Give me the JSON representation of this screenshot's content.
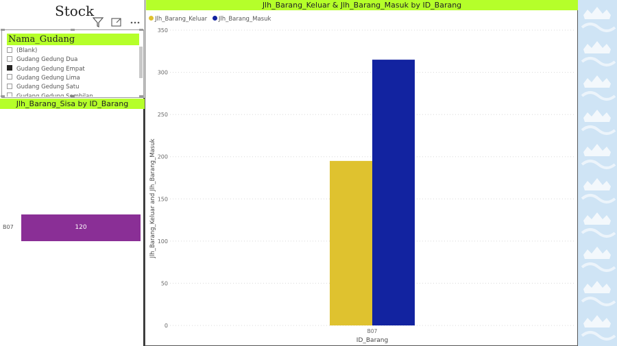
{
  "page": {
    "title": "Stock"
  },
  "header_icons": [
    "filter-icon",
    "focus-mode-icon",
    "more-options-icon"
  ],
  "slicer": {
    "title": "Nama_Gudang",
    "items": [
      {
        "label": "(Blank)",
        "checked": false
      },
      {
        "label": "Gudang Gedung Dua",
        "checked": false
      },
      {
        "label": "Gudang Gedung Empat",
        "checked": true
      },
      {
        "label": "Gudang Gedung Lima",
        "checked": false
      },
      {
        "label": "Gudang Gedung Satu",
        "checked": false
      },
      {
        "label": "Gudang Gedung Sembilan",
        "checked": false
      }
    ]
  },
  "sisa_chart": {
    "title": "Jlh_Barang_Sisa by ID_Barang",
    "categories": [
      "B07"
    ],
    "value_label": "120"
  },
  "main_chart": {
    "title": "Jlh_Barang_Keluar & Jlh_Barang_Masuk by ID_Barang",
    "legend": [
      "Jlh_Barang_Keluar",
      "Jlh_Barang_Masuk"
    ]
  },
  "chart_data": [
    {
      "type": "bar",
      "title": "Jlh_Barang_Sisa by ID_Barang",
      "orientation": "horizontal",
      "categories": [
        "B07"
      ],
      "series": [
        {
          "values": [
            120
          ]
        }
      ],
      "data_labels": [
        "120"
      ],
      "colors": [
        "#8a2f96"
      ]
    },
    {
      "type": "bar",
      "title": "Jlh_Barang_Keluar & Jlh_Barang_Masuk by ID_Barang",
      "categories": [
        "B07"
      ],
      "series": [
        {
          "name": "Jlh_Barang_Keluar",
          "values": [
            195
          ],
          "color": "#dfc22f"
        },
        {
          "name": "Jlh_Barang_Masuk",
          "values": [
            315
          ],
          "color": "#1223a0"
        }
      ],
      "xlabel": "ID_Barang",
      "ylabel": "Jlh_Barang_Keluar and Jlh_Barang_Masuk",
      "ylim": [
        0,
        350
      ],
      "yticks": [
        0,
        50,
        100,
        150,
        200,
        250,
        300,
        350
      ],
      "grid": true,
      "legend_position": "top-left"
    }
  ]
}
